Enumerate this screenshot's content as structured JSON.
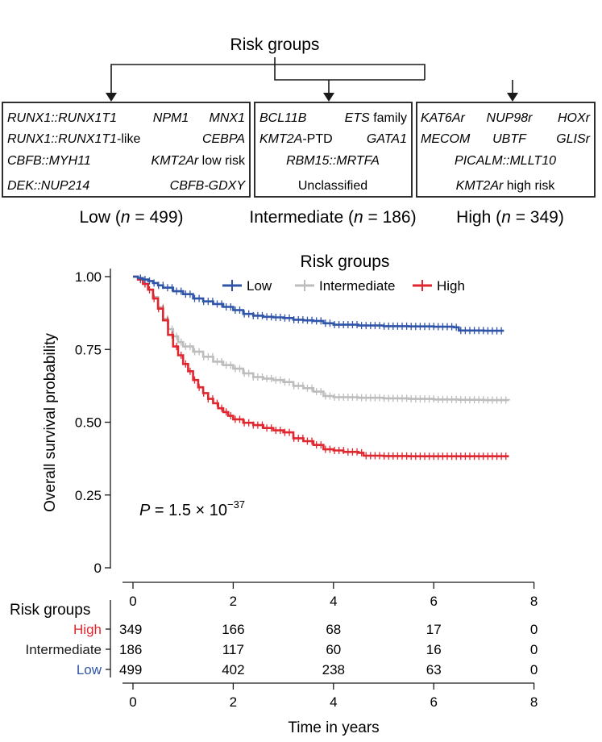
{
  "diagram": {
    "title": "Risk groups",
    "boxes": [
      {
        "key": "low",
        "rows": [
          [
            {
              "seg": [
                {
                  "t": "RUNX1::RUNX1T1",
                  "i": true
                }
              ]
            },
            {
              "seg": [
                {
                  "t": "NPM1",
                  "i": true
                }
              ]
            },
            {
              "seg": [
                {
                  "t": "MNX1",
                  "i": true
                }
              ]
            }
          ],
          [
            {
              "seg": [
                {
                  "t": "RUNX1::RUNX1T1",
                  "i": true
                },
                {
                  "t": "-like",
                  "i": false
                }
              ]
            },
            {
              "seg": [
                {
                  "t": "CEBPA",
                  "i": true
                }
              ]
            }
          ],
          [
            {
              "seg": [
                {
                  "t": "CBFB::MYH11",
                  "i": true
                }
              ]
            },
            {
              "seg": [
                {
                  "t": "KMT2Ar",
                  "i": true
                },
                {
                  "t": " low risk",
                  "i": false
                }
              ]
            }
          ],
          [
            {
              "seg": [
                {
                  "t": "DEK::NUP214",
                  "i": true
                }
              ]
            },
            {
              "seg": [
                {
                  "t": "CBFB-GDXY",
                  "i": true
                }
              ]
            }
          ]
        ],
        "caption": [
          {
            "t": "Low (",
            "i": false
          },
          {
            "t": "n",
            "i": true
          },
          {
            "t": " = 499)",
            "i": false
          }
        ]
      },
      {
        "key": "intermediate",
        "rows": [
          [
            {
              "seg": [
                {
                  "t": "BCL11B",
                  "i": true
                }
              ]
            },
            {
              "seg": [
                {
                  "t": "ETS",
                  "i": true
                },
                {
                  "t": " family",
                  "i": false
                }
              ]
            }
          ],
          [
            {
              "seg": [
                {
                  "t": "KMT2A",
                  "i": true
                },
                {
                  "t": "-PTD",
                  "i": false
                }
              ]
            },
            {
              "seg": [
                {
                  "t": "GATA1",
                  "i": true
                }
              ]
            }
          ],
          [
            {
              "seg": [
                {
                  "t": "RBM15::MRTFA",
                  "i": true
                }
              ]
            }
          ],
          [
            {
              "seg": [
                {
                  "t": "Unclassified",
                  "i": false
                }
              ]
            }
          ]
        ],
        "caption": [
          {
            "t": "Intermediate (",
            "i": false
          },
          {
            "t": "n",
            "i": true
          },
          {
            "t": " = 186)",
            "i": false
          }
        ]
      },
      {
        "key": "high",
        "rows": [
          [
            {
              "seg": [
                {
                  "t": "KAT6Ar",
                  "i": true
                }
              ]
            },
            {
              "seg": [
                {
                  "t": "NUP98r",
                  "i": true
                }
              ]
            },
            {
              "seg": [
                {
                  "t": "HOXr",
                  "i": true
                }
              ]
            }
          ],
          [
            {
              "seg": [
                {
                  "t": "MECOM",
                  "i": true
                }
              ]
            },
            {
              "seg": [
                {
                  "t": "UBTF",
                  "i": true
                }
              ]
            },
            {
              "seg": [
                {
                  "t": "GLISr",
                  "i": true
                }
              ]
            }
          ],
          [
            {
              "seg": [
                {
                  "t": "PICALM::MLLT10",
                  "i": true
                }
              ]
            }
          ],
          [
            {
              "seg": [
                {
                  "t": "KMT2Ar",
                  "i": true
                },
                {
                  "t": " high risk",
                  "i": false
                }
              ]
            }
          ]
        ],
        "caption": [
          {
            "t": "High (",
            "i": false
          },
          {
            "t": "n",
            "i": true
          },
          {
            "t": " = 349)",
            "i": false
          }
        ]
      }
    ]
  },
  "chart_data": {
    "type": "line",
    "subtype": "kaplan-meier",
    "legend_title": "Risk groups",
    "legend_position": "top-center",
    "xlabel": "Time in years",
    "ylabel": "Overall survival probability",
    "xlim": [
      0,
      8
    ],
    "ylim": [
      0,
      1
    ],
    "x_ticks": [
      "0",
      "2",
      "4",
      "6",
      "8"
    ],
    "y_ticks": [
      "0",
      "0.25",
      "0.50",
      "0.75",
      "1.00"
    ],
    "annotation": {
      "p_label": "P",
      "p_text": " = 1.5 × 10",
      "p_exp": "−37"
    },
    "series": [
      {
        "name": "Low",
        "color": "#2f54a8",
        "points": [
          [
            0,
            1.0
          ],
          [
            0.1,
            0.995
          ],
          [
            0.2,
            0.99
          ],
          [
            0.3,
            0.985
          ],
          [
            0.4,
            0.978
          ],
          [
            0.5,
            0.97
          ],
          [
            0.6,
            0.962
          ],
          [
            0.8,
            0.95
          ],
          [
            1.0,
            0.94
          ],
          [
            1.2,
            0.925
          ],
          [
            1.4,
            0.915
          ],
          [
            1.6,
            0.906
          ],
          [
            1.8,
            0.896
          ],
          [
            2.0,
            0.885
          ],
          [
            2.2,
            0.872
          ],
          [
            2.4,
            0.866
          ],
          [
            2.6,
            0.862
          ],
          [
            2.8,
            0.86
          ],
          [
            3.0,
            0.858
          ],
          [
            3.2,
            0.852
          ],
          [
            3.4,
            0.85
          ],
          [
            3.6,
            0.848
          ],
          [
            3.8,
            0.84
          ],
          [
            4.0,
            0.835
          ],
          [
            4.5,
            0.832
          ],
          [
            5.0,
            0.83
          ],
          [
            5.5,
            0.829
          ],
          [
            6.0,
            0.828
          ],
          [
            6.4,
            0.826
          ],
          [
            6.5,
            0.815
          ],
          [
            7.0,
            0.814
          ],
          [
            7.4,
            0.814
          ]
        ]
      },
      {
        "name": "Intermediate",
        "color": "#bdbdbd",
        "points": [
          [
            0,
            1.0
          ],
          [
            0.1,
            0.99
          ],
          [
            0.2,
            0.975
          ],
          [
            0.3,
            0.955
          ],
          [
            0.4,
            0.93
          ],
          [
            0.5,
            0.895
          ],
          [
            0.6,
            0.855
          ],
          [
            0.7,
            0.82
          ],
          [
            0.8,
            0.795
          ],
          [
            0.9,
            0.775
          ],
          [
            1.0,
            0.76
          ],
          [
            1.2,
            0.742
          ],
          [
            1.4,
            0.725
          ],
          [
            1.6,
            0.708
          ],
          [
            1.8,
            0.696
          ],
          [
            2.0,
            0.684
          ],
          [
            2.2,
            0.668
          ],
          [
            2.4,
            0.655
          ],
          [
            2.6,
            0.65
          ],
          [
            2.8,
            0.645
          ],
          [
            3.0,
            0.638
          ],
          [
            3.2,
            0.625
          ],
          [
            3.4,
            0.617
          ],
          [
            3.6,
            0.605
          ],
          [
            3.8,
            0.59
          ],
          [
            4.0,
            0.586
          ],
          [
            4.5,
            0.584
          ],
          [
            5.0,
            0.582
          ],
          [
            5.5,
            0.58
          ],
          [
            6.0,
            0.578
          ],
          [
            6.5,
            0.577
          ],
          [
            7.0,
            0.576
          ],
          [
            7.5,
            0.575
          ]
        ]
      },
      {
        "name": "High",
        "color": "#e0262e",
        "points": [
          [
            0,
            1.0
          ],
          [
            0.1,
            0.99
          ],
          [
            0.2,
            0.975
          ],
          [
            0.3,
            0.955
          ],
          [
            0.4,
            0.925
          ],
          [
            0.5,
            0.89
          ],
          [
            0.6,
            0.85
          ],
          [
            0.7,
            0.8
          ],
          [
            0.8,
            0.76
          ],
          [
            0.9,
            0.73
          ],
          [
            1.0,
            0.7
          ],
          [
            1.1,
            0.675
          ],
          [
            1.2,
            0.645
          ],
          [
            1.3,
            0.62
          ],
          [
            1.4,
            0.6
          ],
          [
            1.5,
            0.58
          ],
          [
            1.6,
            0.565
          ],
          [
            1.7,
            0.548
          ],
          [
            1.8,
            0.535
          ],
          [
            1.9,
            0.522
          ],
          [
            2.0,
            0.51
          ],
          [
            2.2,
            0.498
          ],
          [
            2.4,
            0.49
          ],
          [
            2.6,
            0.48
          ],
          [
            2.8,
            0.472
          ],
          [
            3.0,
            0.465
          ],
          [
            3.2,
            0.445
          ],
          [
            3.4,
            0.435
          ],
          [
            3.6,
            0.422
          ],
          [
            3.8,
            0.407
          ],
          [
            4.0,
            0.403
          ],
          [
            4.2,
            0.398
          ],
          [
            4.5,
            0.395
          ],
          [
            4.6,
            0.385
          ],
          [
            5.0,
            0.384
          ],
          [
            5.5,
            0.383
          ],
          [
            6.0,
            0.383
          ],
          [
            6.5,
            0.383
          ],
          [
            7.0,
            0.383
          ],
          [
            7.5,
            0.383
          ]
        ]
      }
    ],
    "risk_table": {
      "title": "Risk groups",
      "x_ticks": [
        "0",
        "2",
        "4",
        "6",
        "8"
      ],
      "rows": [
        {
          "name": "High",
          "color": "#e0262e",
          "values": [
            "349",
            "166",
            "68",
            "17",
            "0"
          ]
        },
        {
          "name": "Intermediate",
          "color": "#1a1a1a",
          "values": [
            "186",
            "117",
            "60",
            "16",
            "0"
          ]
        },
        {
          "name": "Low",
          "color": "#2f54a8",
          "values": [
            "499",
            "402",
            "238",
            "63",
            "0"
          ]
        }
      ]
    }
  }
}
